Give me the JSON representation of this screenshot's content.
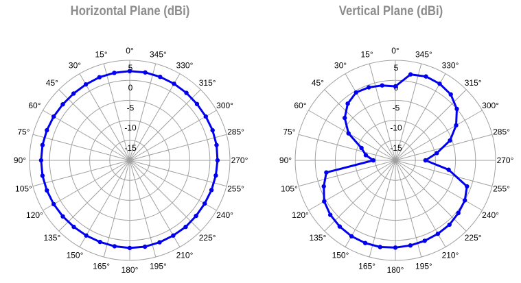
{
  "chart_data": [
    {
      "type": "polar-line",
      "title": "Horizontal Plane (dBi)",
      "radial_ticks": [
        "5",
        "0",
        "-5",
        "-10",
        "-15"
      ],
      "rlim": [
        -20,
        5
      ],
      "angle_direction": "counterclockwise",
      "angle_zero": "top",
      "angle_ticks": [
        "0°",
        "15°",
        "30°",
        "45°",
        "60°",
        "75°",
        "90°",
        "105°",
        "120°",
        "135°",
        "150°",
        "165°",
        "180°",
        "195°",
        "210°",
        "225°",
        "240°",
        "255°",
        "270°",
        "285°",
        "300°",
        "315°",
        "330°",
        "345°"
      ],
      "series": [
        {
          "color": "#0000ee",
          "angles": [
            0,
            10,
            20,
            30,
            40,
            50,
            60,
            70,
            80,
            90,
            100,
            110,
            120,
            130,
            140,
            150,
            160,
            170,
            180,
            190,
            200,
            210,
            220,
            230,
            240,
            250,
            260,
            270,
            280,
            290,
            300,
            310,
            320,
            330,
            340,
            350
          ],
          "values": [
            2.3,
            2.2,
            2.1,
            1.9,
            1.8,
            1.8,
            1.9,
            2.0,
            2.1,
            2.1,
            2.1,
            2.0,
            1.9,
            1.8,
            1.7,
            1.7,
            1.7,
            1.8,
            1.9,
            1.9,
            1.8,
            1.7,
            1.7,
            1.6,
            1.6,
            1.7,
            1.8,
            1.9,
            2.0,
            2.0,
            1.9,
            1.9,
            2.0,
            2.1,
            2.2,
            2.3
          ]
        }
      ]
    },
    {
      "type": "polar-line",
      "title": "Vertical Plane (dBi)",
      "radial_ticks": [
        "5",
        "0",
        "-5",
        "-10",
        "-15"
      ],
      "rlim": [
        -20,
        5
      ],
      "angle_direction": "counterclockwise",
      "angle_zero": "top",
      "angle_ticks": [
        "0°",
        "15°",
        "30°",
        "45°",
        "60°",
        "75°",
        "90°",
        "105°",
        "120°",
        "135°",
        "150°",
        "165°",
        "180°",
        "195°",
        "210°",
        "225°",
        "240°",
        "255°",
        "270°",
        "285°",
        "300°",
        "315°",
        "330°",
        "345°"
      ],
      "series": [
        {
          "color": "#0000ee",
          "angles": [
            0,
            10,
            20,
            30,
            40,
            50,
            60,
            70,
            80,
            90,
            100,
            110,
            120,
            130,
            140,
            150,
            160,
            170,
            180,
            190,
            200,
            210,
            220,
            230,
            240,
            250,
            260,
            270,
            280,
            290,
            300,
            310,
            320,
            330,
            340,
            350
          ],
          "values": [
            -1.5,
            -1.0,
            -0.6,
            -0.4,
            -1.5,
            -3.5,
            -6.5,
            -11.0,
            -12.5,
            -14.5,
            -2.5,
            -1.0,
            0.5,
            1.2,
            1.6,
            1.9,
            2.0,
            2.0,
            1.8,
            1.6,
            1.4,
            1.2,
            1.0,
            0.5,
            0.0,
            -1.0,
            -6.5,
            -12.5,
            -9.5,
            -5.5,
            -2.5,
            0.0,
            1.5,
            2.1,
            2.3,
            1.8
          ]
        }
      ]
    }
  ]
}
